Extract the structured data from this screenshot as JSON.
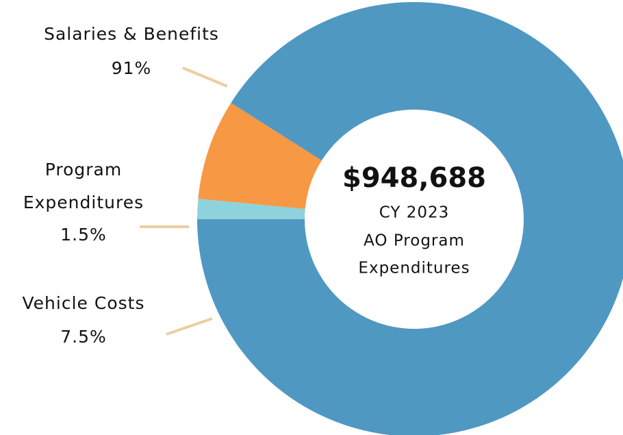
{
  "chart_data": {
    "type": "donut",
    "categories": [
      "Salaries & Benefits",
      "Program Expenditures",
      "Vehicle Costs"
    ],
    "values": [
      91,
      1.5,
      7.5
    ],
    "value_labels": [
      "91%",
      "1.5%",
      "7.5%"
    ],
    "colors": [
      "#4f98c2",
      "#8ed3dc",
      "#f79844"
    ],
    "center_value": "$948,688",
    "center_text": [
      "CY 2023",
      "AO Program",
      "Expenditures"
    ]
  }
}
